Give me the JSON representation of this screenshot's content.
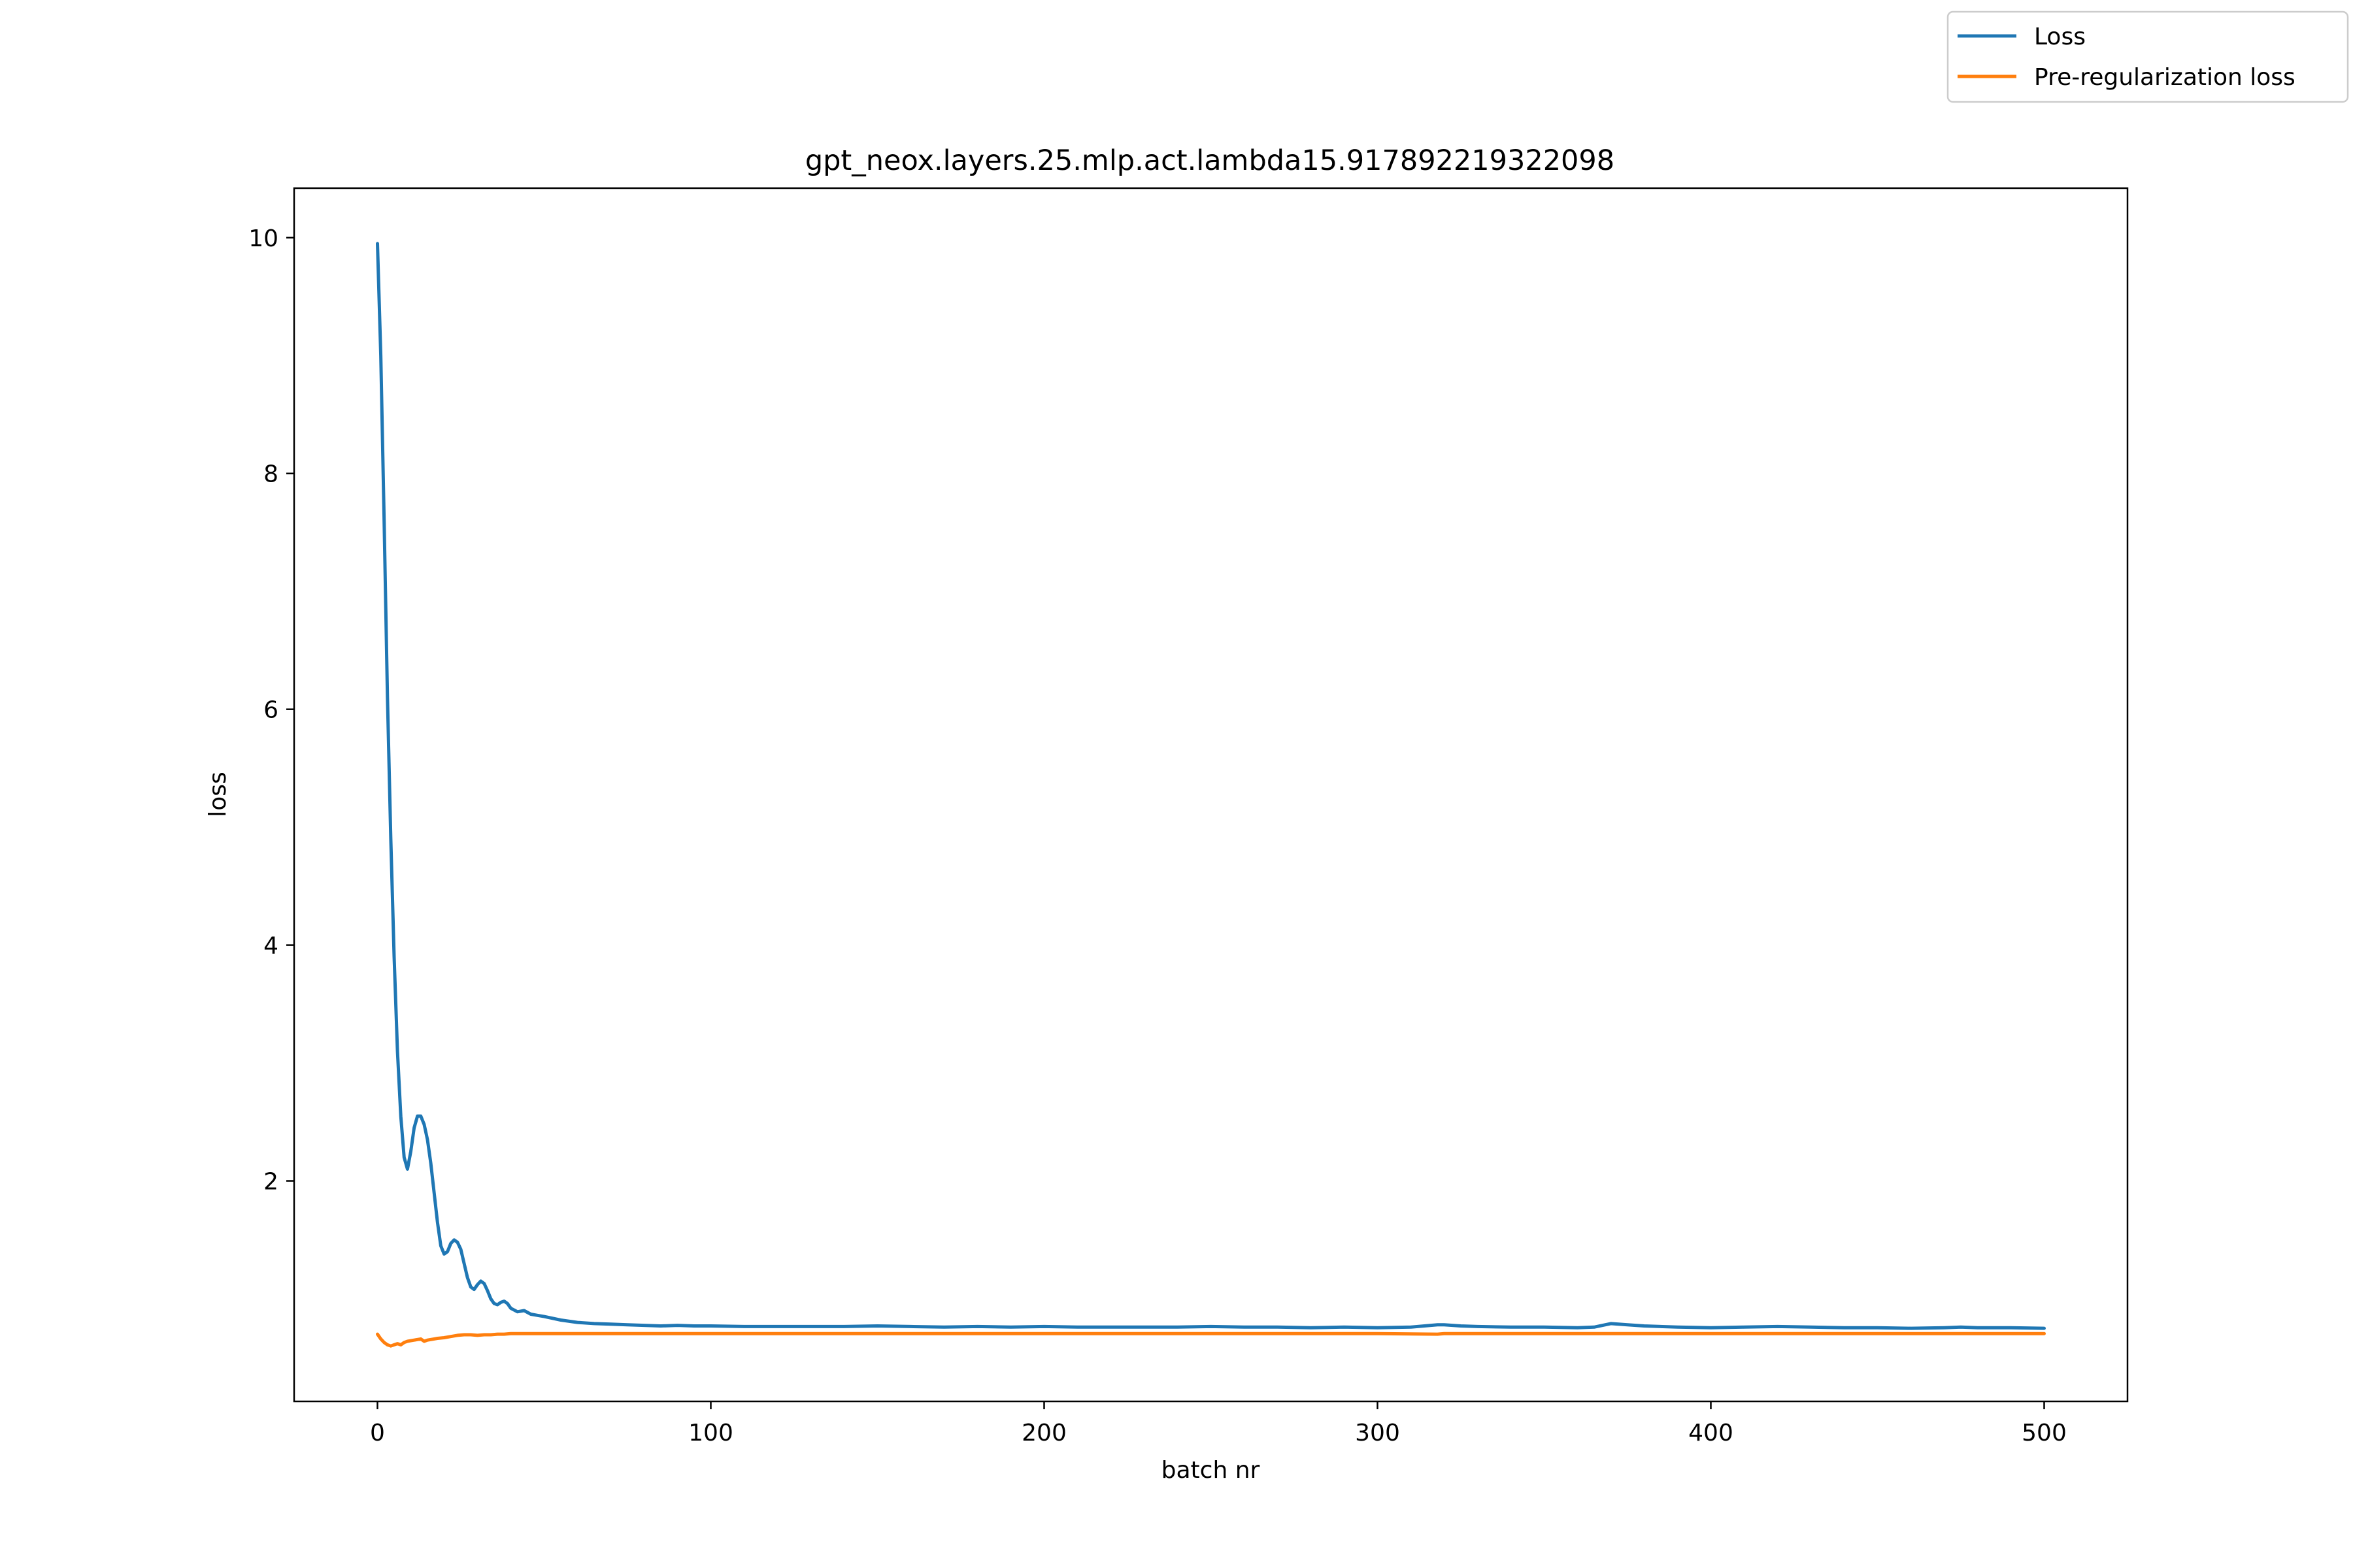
{
  "chart_data": {
    "type": "line",
    "title": "gpt_neox.layers.25.mlp.act.lambda15.917892219322098",
    "xlabel": "batch nr",
    "ylabel": "loss",
    "xlim": [
      -25,
      525
    ],
    "ylim": [
      0.13,
      10.42
    ],
    "xticks": [
      0,
      100,
      200,
      300,
      400,
      500
    ],
    "yticks": [
      2,
      4,
      6,
      8,
      10
    ],
    "grid": false,
    "legend_position": "top-right (outside figure)",
    "series": [
      {
        "name": "Loss",
        "color": "#1f77b4",
        "points": [
          [
            0,
            9.95
          ],
          [
            1,
            9.0
          ],
          [
            2,
            7.6
          ],
          [
            3,
            6.1
          ],
          [
            4,
            4.9
          ],
          [
            5,
            3.9
          ],
          [
            6,
            3.1
          ],
          [
            7,
            2.55
          ],
          [
            8,
            2.2
          ],
          [
            9,
            2.1
          ],
          [
            10,
            2.25
          ],
          [
            11,
            2.45
          ],
          [
            12,
            2.55
          ],
          [
            13,
            2.55
          ],
          [
            14,
            2.48
          ],
          [
            15,
            2.35
          ],
          [
            16,
            2.15
          ],
          [
            17,
            1.9
          ],
          [
            18,
            1.65
          ],
          [
            19,
            1.45
          ],
          [
            20,
            1.38
          ],
          [
            21,
            1.4
          ],
          [
            22,
            1.47
          ],
          [
            23,
            1.5
          ],
          [
            24,
            1.48
          ],
          [
            25,
            1.42
          ],
          [
            26,
            1.3
          ],
          [
            27,
            1.18
          ],
          [
            28,
            1.1
          ],
          [
            29,
            1.08
          ],
          [
            30,
            1.12
          ],
          [
            31,
            1.15
          ],
          [
            32,
            1.13
          ],
          [
            33,
            1.07
          ],
          [
            34,
            1.0
          ],
          [
            35,
            0.96
          ],
          [
            36,
            0.95
          ],
          [
            37,
            0.97
          ],
          [
            38,
            0.98
          ],
          [
            39,
            0.96
          ],
          [
            40,
            0.92
          ],
          [
            42,
            0.89
          ],
          [
            44,
            0.9
          ],
          [
            46,
            0.87
          ],
          [
            48,
            0.86
          ],
          [
            50,
            0.85
          ],
          [
            55,
            0.82
          ],
          [
            60,
            0.8
          ],
          [
            65,
            0.79
          ],
          [
            70,
            0.785
          ],
          [
            75,
            0.78
          ],
          [
            80,
            0.775
          ],
          [
            85,
            0.77
          ],
          [
            90,
            0.775
          ],
          [
            95,
            0.77
          ],
          [
            100,
            0.77
          ],
          [
            110,
            0.765
          ],
          [
            120,
            0.765
          ],
          [
            130,
            0.765
          ],
          [
            140,
            0.765
          ],
          [
            150,
            0.77
          ],
          [
            160,
            0.765
          ],
          [
            170,
            0.76
          ],
          [
            180,
            0.765
          ],
          [
            190,
            0.76
          ],
          [
            200,
            0.765
          ],
          [
            210,
            0.76
          ],
          [
            220,
            0.76
          ],
          [
            230,
            0.76
          ],
          [
            240,
            0.76
          ],
          [
            250,
            0.765
          ],
          [
            260,
            0.76
          ],
          [
            270,
            0.76
          ],
          [
            280,
            0.755
          ],
          [
            290,
            0.76
          ],
          [
            300,
            0.755
          ],
          [
            310,
            0.76
          ],
          [
            318,
            0.78
          ],
          [
            320,
            0.78
          ],
          [
            325,
            0.77
          ],
          [
            330,
            0.765
          ],
          [
            340,
            0.76
          ],
          [
            350,
            0.76
          ],
          [
            360,
            0.755
          ],
          [
            365,
            0.76
          ],
          [
            370,
            0.79
          ],
          [
            375,
            0.78
          ],
          [
            380,
            0.77
          ],
          [
            390,
            0.76
          ],
          [
            400,
            0.755
          ],
          [
            410,
            0.76
          ],
          [
            420,
            0.765
          ],
          [
            430,
            0.76
          ],
          [
            440,
            0.755
          ],
          [
            450,
            0.755
          ],
          [
            460,
            0.75
          ],
          [
            470,
            0.755
          ],
          [
            475,
            0.76
          ],
          [
            480,
            0.755
          ],
          [
            490,
            0.755
          ],
          [
            500,
            0.75
          ]
        ]
      },
      {
        "name": "Pre-regularization loss",
        "color": "#ff7f0e",
        "points": [
          [
            0,
            0.7
          ],
          [
            1,
            0.66
          ],
          [
            2,
            0.63
          ],
          [
            3,
            0.61
          ],
          [
            4,
            0.6
          ],
          [
            5,
            0.61
          ],
          [
            6,
            0.62
          ],
          [
            7,
            0.61
          ],
          [
            8,
            0.63
          ],
          [
            9,
            0.64
          ],
          [
            10,
            0.645
          ],
          [
            11,
            0.65
          ],
          [
            12,
            0.655
          ],
          [
            13,
            0.66
          ],
          [
            14,
            0.64
          ],
          [
            15,
            0.65
          ],
          [
            16,
            0.655
          ],
          [
            17,
            0.66
          ],
          [
            18,
            0.665
          ],
          [
            20,
            0.67
          ],
          [
            22,
            0.68
          ],
          [
            24,
            0.69
          ],
          [
            26,
            0.695
          ],
          [
            28,
            0.695
          ],
          [
            30,
            0.69
          ],
          [
            32,
            0.695
          ],
          [
            34,
            0.695
          ],
          [
            36,
            0.7
          ],
          [
            38,
            0.7
          ],
          [
            40,
            0.705
          ],
          [
            45,
            0.705
          ],
          [
            50,
            0.705
          ],
          [
            60,
            0.705
          ],
          [
            80,
            0.705
          ],
          [
            100,
            0.705
          ],
          [
            150,
            0.705
          ],
          [
            200,
            0.705
          ],
          [
            250,
            0.705
          ],
          [
            300,
            0.705
          ],
          [
            318,
            0.7
          ],
          [
            320,
            0.705
          ],
          [
            350,
            0.705
          ],
          [
            400,
            0.705
          ],
          [
            450,
            0.705
          ],
          [
            500,
            0.705
          ]
        ]
      }
    ]
  }
}
